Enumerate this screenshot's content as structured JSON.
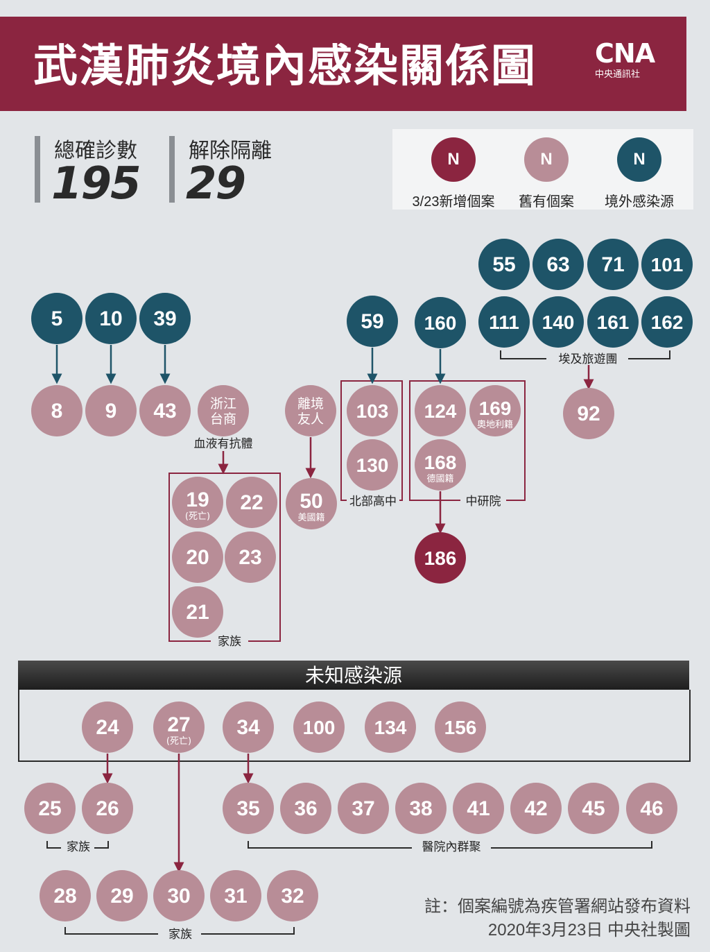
{
  "header": {
    "title": "武漢肺炎境內感染關係圖",
    "logo_text": "CNA",
    "logo_sub": "中央通訊社"
  },
  "stats": [
    {
      "label": "總確診數",
      "value": "195"
    },
    {
      "label": "解除隔離",
      "value": "29"
    }
  ],
  "legend": [
    {
      "symbol": "N",
      "label": "3/23新增個案",
      "color": "#8b2540"
    },
    {
      "symbol": "N",
      "label": "舊有個案",
      "color": "#b88d97"
    },
    {
      "symbol": "N",
      "label": "境外感染源",
      "color": "#1e5468"
    }
  ],
  "colors": {
    "new": "#8b2540",
    "old": "#b88d97",
    "imported": "#1e5468",
    "line": "#8b2540",
    "arrow_imported": "#1e5468"
  },
  "nodes": [
    {
      "id": "5",
      "label": "5",
      "type": "imported"
    },
    {
      "id": "10",
      "label": "10",
      "type": "imported"
    },
    {
      "id": "39",
      "label": "39",
      "type": "imported"
    },
    {
      "id": "8",
      "label": "8",
      "type": "old"
    },
    {
      "id": "9",
      "label": "9",
      "type": "old"
    },
    {
      "id": "43",
      "label": "43",
      "type": "old"
    },
    {
      "id": "zj",
      "label": "浙江",
      "label2": "台商",
      "type": "old",
      "text": true
    },
    {
      "id": "li",
      "label": "離境",
      "label2": "友人",
      "type": "old",
      "text": true
    },
    {
      "id": "50",
      "label": "50",
      "sub": "美國籍",
      "type": "old"
    },
    {
      "id": "19",
      "label": "19",
      "sub": "(死亡)",
      "type": "old"
    },
    {
      "id": "22",
      "label": "22",
      "type": "old"
    },
    {
      "id": "20",
      "label": "20",
      "type": "old"
    },
    {
      "id": "23",
      "label": "23",
      "type": "old"
    },
    {
      "id": "21",
      "label": "21",
      "type": "old"
    },
    {
      "id": "59",
      "label": "59",
      "type": "imported"
    },
    {
      "id": "103",
      "label": "103",
      "type": "old"
    },
    {
      "id": "130",
      "label": "130",
      "type": "old"
    },
    {
      "id": "160",
      "label": "160",
      "type": "imported"
    },
    {
      "id": "124",
      "label": "124",
      "type": "old"
    },
    {
      "id": "169",
      "label": "169",
      "sub": "奧地利籍",
      "type": "old"
    },
    {
      "id": "168",
      "label": "168",
      "sub": "德國籍",
      "type": "old"
    },
    {
      "id": "186",
      "label": "186",
      "type": "new"
    },
    {
      "id": "55",
      "label": "55",
      "type": "imported"
    },
    {
      "id": "63",
      "label": "63",
      "type": "imported"
    },
    {
      "id": "71",
      "label": "71",
      "type": "imported"
    },
    {
      "id": "101",
      "label": "101",
      "type": "imported"
    },
    {
      "id": "111",
      "label": "111",
      "type": "imported"
    },
    {
      "id": "140",
      "label": "140",
      "type": "imported"
    },
    {
      "id": "161",
      "label": "161",
      "type": "imported"
    },
    {
      "id": "162",
      "label": "162",
      "type": "imported"
    },
    {
      "id": "92",
      "label": "92",
      "type": "old"
    },
    {
      "id": "24",
      "label": "24",
      "type": "old"
    },
    {
      "id": "27",
      "label": "27",
      "sub": "(死亡)",
      "type": "old"
    },
    {
      "id": "34",
      "label": "34",
      "type": "old"
    },
    {
      "id": "100",
      "label": "100",
      "type": "old"
    },
    {
      "id": "134",
      "label": "134",
      "type": "old"
    },
    {
      "id": "156",
      "label": "156",
      "type": "old"
    },
    {
      "id": "25",
      "label": "25",
      "type": "old"
    },
    {
      "id": "26",
      "label": "26",
      "type": "old"
    },
    {
      "id": "35",
      "label": "35",
      "type": "old"
    },
    {
      "id": "36",
      "label": "36",
      "type": "old"
    },
    {
      "id": "37",
      "label": "37",
      "type": "old"
    },
    {
      "id": "38",
      "label": "38",
      "type": "old"
    },
    {
      "id": "41",
      "label": "41",
      "type": "old"
    },
    {
      "id": "42",
      "label": "42",
      "type": "old"
    },
    {
      "id": "45",
      "label": "45",
      "type": "old"
    },
    {
      "id": "46",
      "label": "46",
      "type": "old"
    },
    {
      "id": "28",
      "label": "28",
      "type": "old"
    },
    {
      "id": "29",
      "label": "29",
      "type": "old"
    },
    {
      "id": "30",
      "label": "30",
      "type": "old"
    },
    {
      "id": "31",
      "label": "31",
      "type": "old"
    },
    {
      "id": "32",
      "label": "32",
      "type": "old"
    }
  ],
  "edges": [
    {
      "from": "5",
      "to": "8"
    },
    {
      "from": "10",
      "to": "9"
    },
    {
      "from": "39",
      "to": "43"
    },
    {
      "from": "59",
      "to": "103"
    },
    {
      "from": "160",
      "to": "124"
    },
    {
      "from": "168",
      "to": "186"
    },
    {
      "from": "li",
      "to": "50"
    },
    {
      "from": "zj",
      "to": "family1"
    },
    {
      "from": "tour",
      "to": "92"
    },
    {
      "from": "24",
      "to": "26"
    },
    {
      "from": "34",
      "to": "35"
    },
    {
      "from": "27",
      "to": "30"
    }
  ],
  "group_labels": {
    "blood": "血液有抗體",
    "family1": "家族",
    "north": "北部高中",
    "academia": "中研院",
    "tour": "埃及旅遊團",
    "family2": "家族",
    "hospital": "醫院內群聚",
    "family3": "家族"
  },
  "unknown_source": "未知感染源",
  "note": {
    "line1": "註：個案編號為疾管署網站發布資料",
    "line2": "2020年3月23日 中央社製圖"
  }
}
